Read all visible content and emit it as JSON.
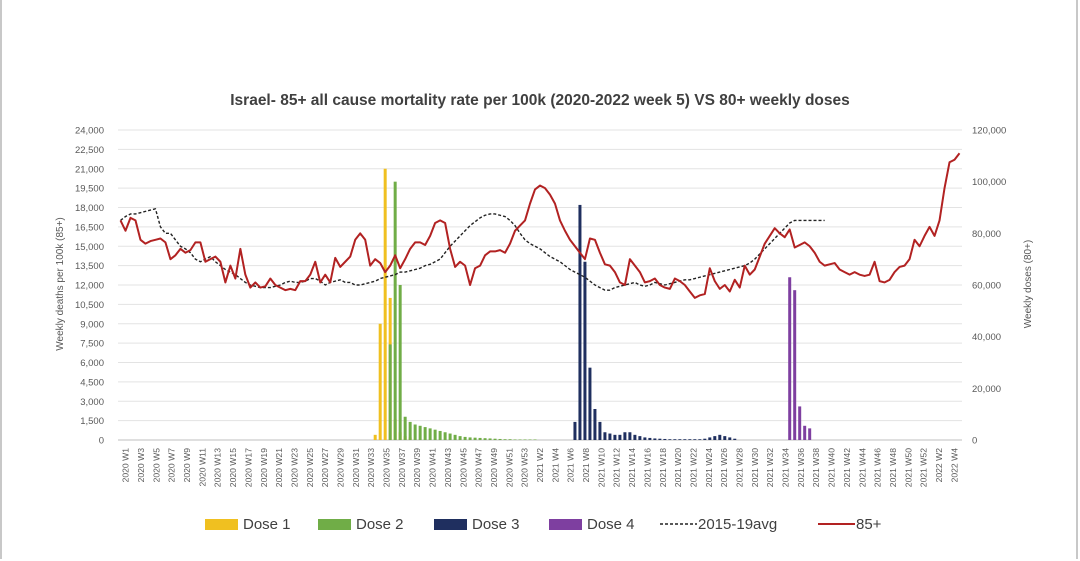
{
  "chart_data": {
    "type": "bar",
    "title": "Israel- 85+ all cause mortality rate per 100k (2020-2022 week 5) VS 80+ weekly doses",
    "ylabel": "Weekly deaths per 100k (85+)",
    "y2label": "Weekly doses (80+)",
    "ylim": [
      0,
      24000
    ],
    "y2lim": [
      0,
      120000
    ],
    "y_ticks": [
      "24,000",
      "22,500",
      "21,000",
      "19,500",
      "18,000",
      "16,500",
      "15,000",
      "13,500",
      "12,000",
      "10,500",
      "9,000",
      "7,500",
      "6,000",
      "4,500",
      "3,000",
      "1,500",
      "0"
    ],
    "y2_ticks": [
      "120,000",
      "100,000",
      "80,000",
      "60,000",
      "40,000",
      "20,000",
      "0"
    ],
    "x_tick_labels": [
      "2020 W1",
      "2020 W3",
      "2020 W5",
      "2020 W7",
      "2020 W9",
      "2020 W11",
      "2020 W13",
      "2020 W15",
      "2020 W17",
      "2020 W19",
      "2020 W21",
      "2020 W23",
      "2020 W25",
      "2020 W27",
      "2020 W29",
      "2020 W31",
      "2020 W33",
      "2020 W35",
      "2020 W37",
      "2020 W39",
      "2020 W41",
      "2020 W43",
      "2020 W45",
      "2020 W47",
      "2020 W49",
      "2020 W51",
      "2020 W53",
      "2021 W2",
      "2021 W4",
      "2021 W6",
      "2021 W8",
      "2021 W10",
      "2021 W12",
      "2021 W14",
      "2021 W16",
      "2021 W18",
      "2021 W20",
      "2021 W22",
      "2021 W24",
      "2021 W26",
      "2021 W28",
      "2021 W30",
      "2021 W32",
      "2021 W34",
      "2021 W36",
      "2021 W38",
      "2021 W40",
      "2021 W42",
      "2021 W44",
      "2021 W46",
      "2021 W48",
      "2021 W50",
      "2021 W52",
      "2022 W2",
      "2022 W4"
    ],
    "legend_position": "bottom",
    "grid": true,
    "line_series": [
      {
        "name": "2015-19avg",
        "axis": "left",
        "color": "#222222",
        "style": "dashed",
        "values": [
          17000,
          17300,
          17500,
          17500,
          17600,
          17700,
          17800,
          17900,
          16500,
          16000,
          16000,
          15500,
          15000,
          14800,
          14500,
          14000,
          13800,
          14000,
          14200,
          13800,
          13500,
          13200,
          13000,
          12800,
          12500,
          12200,
          12000,
          11900,
          11800,
          11800,
          11800,
          11900,
          12000,
          12200,
          12300,
          12200,
          12200,
          12300,
          12500,
          12500,
          12300,
          12000,
          12200,
          12300,
          12400,
          12200,
          12200,
          12000,
          12000,
          12100,
          12200,
          12300,
          12500,
          12600,
          12700,
          12800,
          13000,
          13000,
          13100,
          13200,
          13300,
          13500,
          13600,
          13800,
          14000,
          14500,
          15000,
          15400,
          15800,
          16200,
          16600,
          16900,
          17200,
          17400,
          17500,
          17500,
          17400,
          17300,
          17000,
          16600,
          16000,
          15500,
          15200,
          15000,
          14800,
          14500,
          14200,
          14000,
          13800,
          13500,
          13200,
          13000,
          12800,
          12600,
          12300,
          12000,
          11800,
          11600,
          11600,
          11800,
          11900,
          12000,
          12100,
          12200,
          12000,
          11900,
          12000,
          12200,
          12100,
          12000,
          12100,
          12200,
          12300,
          12400,
          12400,
          12500,
          12600,
          12700,
          12800,
          12900,
          13000,
          13100,
          13200,
          13300,
          13400,
          13500,
          13700,
          14000,
          14400,
          14800,
          15200,
          15600,
          16000,
          16400,
          16800,
          17000,
          17000,
          17000,
          17000,
          17000,
          17000,
          17000
        ]
      },
      {
        "name": "85+",
        "axis": "left",
        "color": "#b22222",
        "style": "solid",
        "values": [
          17000,
          16200,
          17200,
          17000,
          15500,
          15200,
          15400,
          15500,
          15600,
          15300,
          14000,
          14300,
          14800,
          14500,
          14700,
          15300,
          15300,
          13800,
          14000,
          14200,
          13800,
          12200,
          13500,
          12500,
          14800,
          12800,
          11800,
          12200,
          11800,
          11900,
          12500,
          12000,
          11800,
          11600,
          11700,
          11600,
          12300,
          12300,
          12800,
          13800,
          12200,
          12800,
          12200,
          14100,
          13400,
          13800,
          14200,
          15500,
          16000,
          15500,
          13500,
          14000,
          13700,
          13000,
          13500,
          14300,
          13300,
          14000,
          14800,
          15300,
          15300,
          15100,
          15800,
          16800,
          17000,
          16800,
          14800,
          13400,
          13800,
          13500,
          12000,
          13300,
          13500,
          14300,
          14600,
          14600,
          14700,
          14500,
          15200,
          16200,
          16600,
          17000,
          18300,
          19400,
          19700,
          19500,
          19000,
          18300,
          17000,
          16200,
          15500,
          15000,
          14500,
          14000,
          15600,
          15500,
          14500,
          13600,
          13500,
          13000,
          12200,
          12000,
          14000,
          13500,
          13000,
          12200,
          12300,
          12500,
          12000,
          11800,
          11700,
          12500,
          12300,
          12000,
          11500,
          11000,
          11200,
          11300,
          13300,
          12300,
          11700,
          12000,
          11500,
          12400,
          11800,
          13500,
          12800,
          13200,
          14200,
          15200,
          15800,
          16400,
          16000,
          15700,
          16300,
          14900,
          15100,
          15300,
          15000,
          14500,
          13800,
          13500,
          13600,
          13700,
          13200,
          13000,
          12800,
          13000,
          12800,
          12700,
          12800,
          13800,
          12300,
          12200,
          12400,
          13000,
          13400,
          13500,
          14000,
          15500,
          15000,
          15800,
          16500,
          15800,
          17000,
          19500,
          21500,
          21700,
          22200
        ]
      }
    ],
    "bar_series": [
      {
        "name": "Dose 1",
        "axis": "right",
        "color": "#f0c020",
        "start_index": 51,
        "values": [
          2000,
          45000,
          105000,
          55000,
          8000,
          3000,
          1500,
          1000
        ]
      },
      {
        "name": "Dose 2",
        "axis": "right",
        "color": "#70ad47",
        "start_index": 54,
        "values": [
          37000,
          100000,
          60000,
          9000,
          7000,
          6000,
          5500,
          5000,
          4500,
          4000,
          3500,
          3000,
          2500,
          2000,
          1500,
          1200,
          1000,
          900,
          800,
          700,
          600,
          500,
          400,
          300,
          300,
          200,
          200,
          200,
          200,
          200
        ]
      },
      {
        "name": "Dose 3",
        "axis": "right",
        "color": "#1f2f5f",
        "start_index": 91,
        "values": [
          7000,
          91000,
          69000,
          28000,
          12000,
          7000,
          3000,
          2500,
          2000,
          2000,
          3000,
          3000,
          2000,
          1500,
          1000,
          800,
          600,
          500,
          400,
          300,
          300,
          300,
          300,
          300,
          300,
          300,
          500,
          1000,
          1500,
          2000,
          1500,
          1000,
          500
        ]
      },
      {
        "name": "Dose 4",
        "axis": "right",
        "color": "#7e3fa0",
        "start_index": 134,
        "values": [
          63000,
          58000,
          13000,
          5500,
          4500
        ]
      }
    ],
    "legend": [
      "Dose 1",
      "Dose 2",
      "Dose 3",
      "Dose 4",
      "2015-19avg",
      "85+"
    ]
  }
}
